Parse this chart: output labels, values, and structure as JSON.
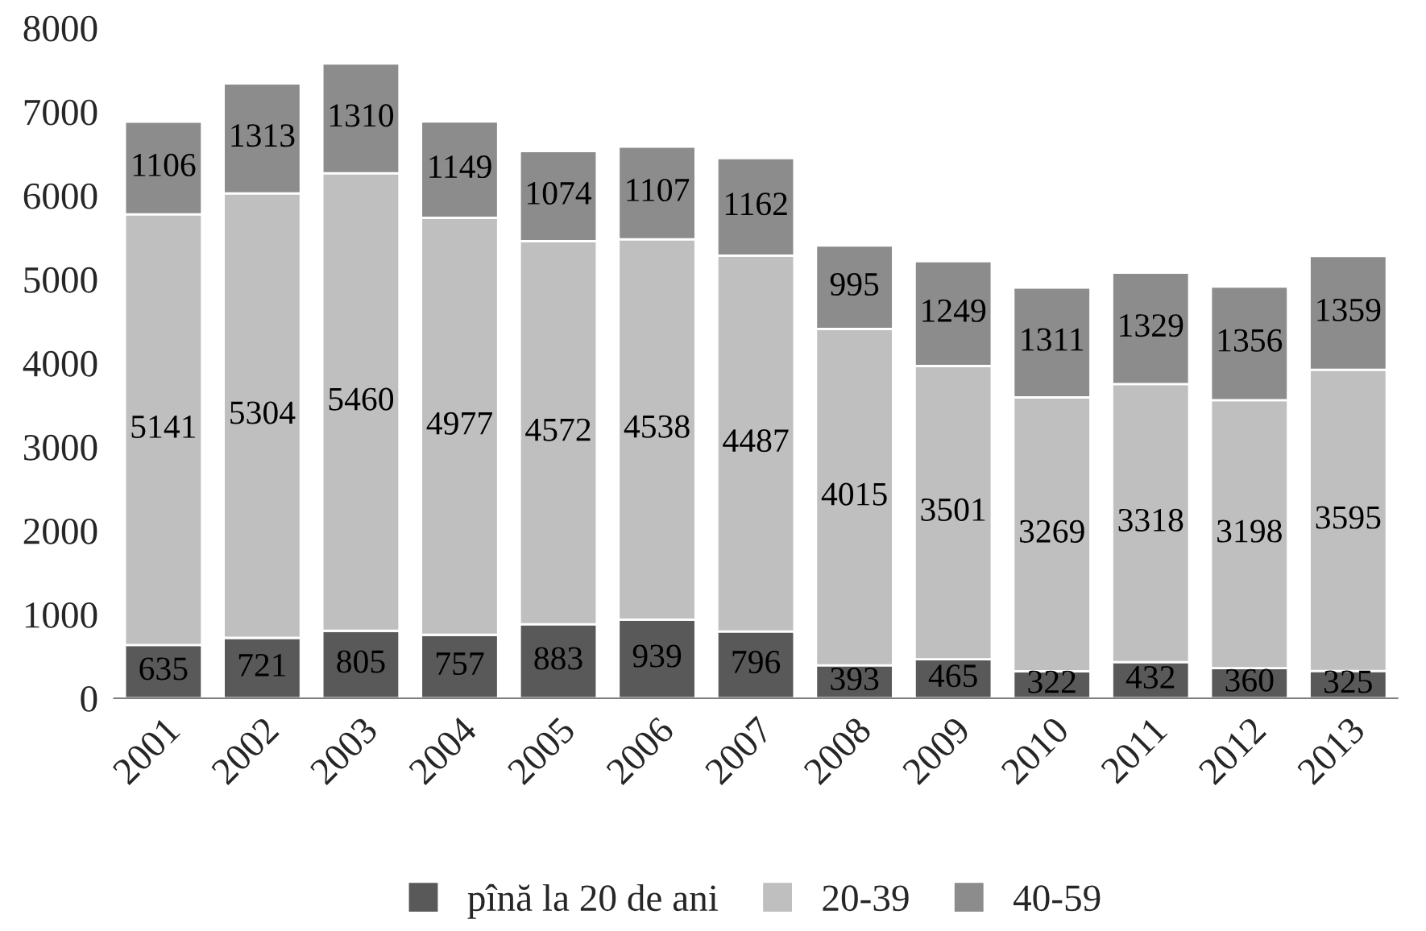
{
  "chart_data": {
    "type": "bar",
    "stacked": true,
    "categories": [
      "2001",
      "2002",
      "2003",
      "2004",
      "2005",
      "2006",
      "2007",
      "2008",
      "2009",
      "2010",
      "2011",
      "2012",
      "2013"
    ],
    "series": [
      {
        "name": "pînă la 20 de ani",
        "color": "#595959",
        "values": [
          635,
          721,
          805,
          757,
          883,
          939,
          796,
          393,
          465,
          322,
          432,
          360,
          325
        ]
      },
      {
        "name": "20-39",
        "color": "#bfbfbf",
        "values": [
          5141,
          5304,
          5460,
          4977,
          4572,
          4538,
          4487,
          4015,
          3501,
          3269,
          3318,
          3198,
          3595
        ]
      },
      {
        "name": "40-59",
        "color": "#8c8c8c",
        "values": [
          1106,
          1313,
          1310,
          1149,
          1074,
          1107,
          1162,
          995,
          1249,
          1311,
          1329,
          1356,
          1359
        ]
      }
    ],
    "ylim": [
      0,
      8000
    ],
    "yticks": [
      0,
      1000,
      2000,
      3000,
      4000,
      5000,
      6000,
      7000,
      8000
    ],
    "data_labels": true,
    "grid": false,
    "legend": "bottom"
  }
}
